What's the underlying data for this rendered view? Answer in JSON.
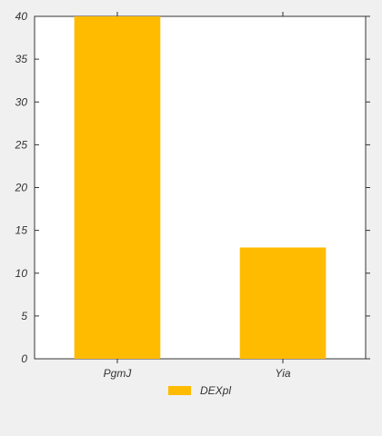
{
  "chart_data": {
    "type": "bar",
    "categories": [
      "PgmJ",
      "Yia"
    ],
    "series": [
      {
        "name": "DEXpl",
        "values": [
          40,
          13
        ]
      }
    ],
    "ylim": [
      0,
      40
    ],
    "yticks": [
      0,
      5,
      10,
      15,
      20,
      25,
      30,
      35,
      40
    ],
    "grid": false,
    "legend_position": "bottom-center",
    "colors": {
      "bar": "#FFBB00",
      "plot_background": "#ffffff",
      "figure_background": "#f0f0f0",
      "axis": "#333333"
    }
  }
}
